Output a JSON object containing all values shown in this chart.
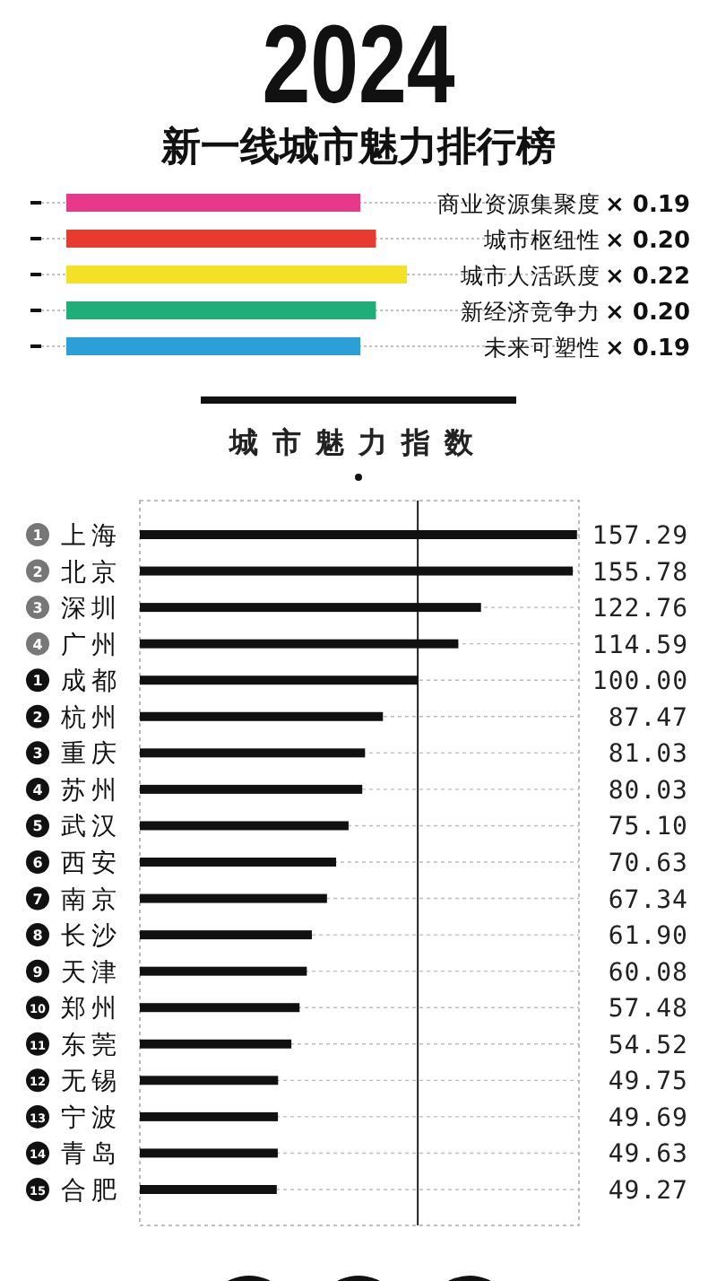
{
  "chart_data": [
    {
      "type": "bar",
      "orientation": "horizontal",
      "title": "2024",
      "subtitle": "新一线城市魅力排行榜",
      "categories": [
        "商业资源集聚度",
        "城市枢纽性",
        "城市人活跃度",
        "新经济竞争力",
        "未来可塑性"
      ],
      "values": [
        0.19,
        0.2,
        0.22,
        0.2,
        0.19
      ],
      "colors": [
        "#e8388a",
        "#e63b2e",
        "#f4e025",
        "#1fae7a",
        "#2a9fd8"
      ],
      "value_labels": [
        "× 0.19",
        "× 0.20",
        "× 0.22",
        "× 0.20",
        "× 0.19"
      ],
      "tick_labels": "y"
    },
    {
      "type": "bar",
      "orientation": "horizontal",
      "title": "城市魅力指数",
      "categories": [
        "1 上海",
        "2 北京",
        "3 深圳",
        "4 广州",
        "1 成都",
        "2 杭州",
        "3 重庆",
        "4 苏州",
        "5 武汉",
        "6 西安",
        "7 南京",
        "8 长沙",
        "9 天津",
        "10 郑州",
        "11 东莞",
        "12 无锡",
        "13 宁波",
        "14 青岛",
        "15 合肥"
      ],
      "values": [
        157.29,
        155.78,
        122.76,
        114.59,
        100.0,
        87.47,
        81.03,
        80.03,
        75.1,
        70.63,
        67.34,
        61.9,
        60.08,
        57.48,
        54.52,
        49.75,
        49.69,
        49.63,
        49.27
      ],
      "value_labels": [
        "157.29",
        "155.78",
        "122.76",
        "114.59",
        "100.00",
        "87.47",
        "81.03",
        "80.03",
        "75.10",
        "70.63",
        "67.34",
        "61.90",
        "60.08",
        "57.48",
        "54.52",
        "49.75",
        "49.69",
        "49.63",
        "49.27"
      ],
      "color": "#111111",
      "xlim": [
        0,
        158
      ],
      "grid": "y",
      "tick_labels": "y",
      "ref_lines": [
        {
          "axis": "x",
          "value": 100,
          "color": "#222222"
        }
      ]
    }
  ]
}
